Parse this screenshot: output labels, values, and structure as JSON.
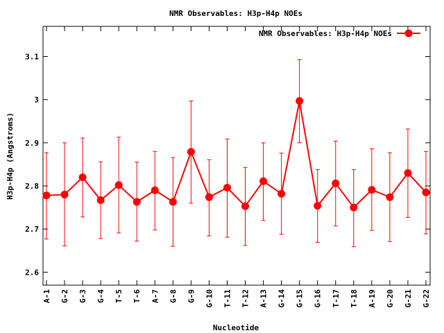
{
  "chart_data": {
    "type": "line",
    "title": "NMR Observables: H3p-H4p NOEs",
    "xlabel": "Nucleotide",
    "ylabel": "H3p-H4p (Angstroms)",
    "ylim": [
      2.57,
      3.17
    ],
    "yticks": [
      2.6,
      2.7,
      2.8,
      2.9,
      3,
      3.1
    ],
    "ytick_labels": [
      "2.6",
      "2.7",
      "2.8",
      "2.9",
      "3",
      "3.1"
    ],
    "grid": false,
    "legend_position": "top-right",
    "categories": [
      "A-1",
      "G-2",
      "G-3",
      "G-4",
      "T-5",
      "T-6",
      "A-7",
      "G-8",
      "G-9",
      "G-10",
      "T-11",
      "T-12",
      "A-13",
      "G-14",
      "G-15",
      "G-16",
      "T-17",
      "T-18",
      "A-19",
      "G-20",
      "G-21",
      "G-22"
    ],
    "series": [
      {
        "name": "NMR Observables: H3p-H4p NOEs",
        "color": "#ff0000",
        "values": [
          2.778,
          2.78,
          2.82,
          2.767,
          2.802,
          2.763,
          2.79,
          2.763,
          2.879,
          2.774,
          2.796,
          2.753,
          2.811,
          2.782,
          2.997,
          2.754,
          2.806,
          2.75,
          2.791,
          2.774,
          2.83,
          2.785
        ],
        "error_low": [
          2.677,
          2.661,
          2.728,
          2.678,
          2.691,
          2.672,
          2.698,
          2.66,
          2.76,
          2.684,
          2.681,
          2.662,
          2.72,
          2.688,
          2.9,
          2.669,
          2.707,
          2.659,
          2.697,
          2.671,
          2.727,
          2.689
        ],
        "error_high": [
          2.877,
          2.9,
          2.911,
          2.856,
          2.913,
          2.855,
          2.88,
          2.866,
          2.997,
          2.861,
          2.909,
          2.843,
          2.9,
          2.876,
          3.093,
          2.838,
          2.904,
          2.838,
          2.886,
          2.877,
          2.932,
          2.88
        ]
      }
    ]
  }
}
